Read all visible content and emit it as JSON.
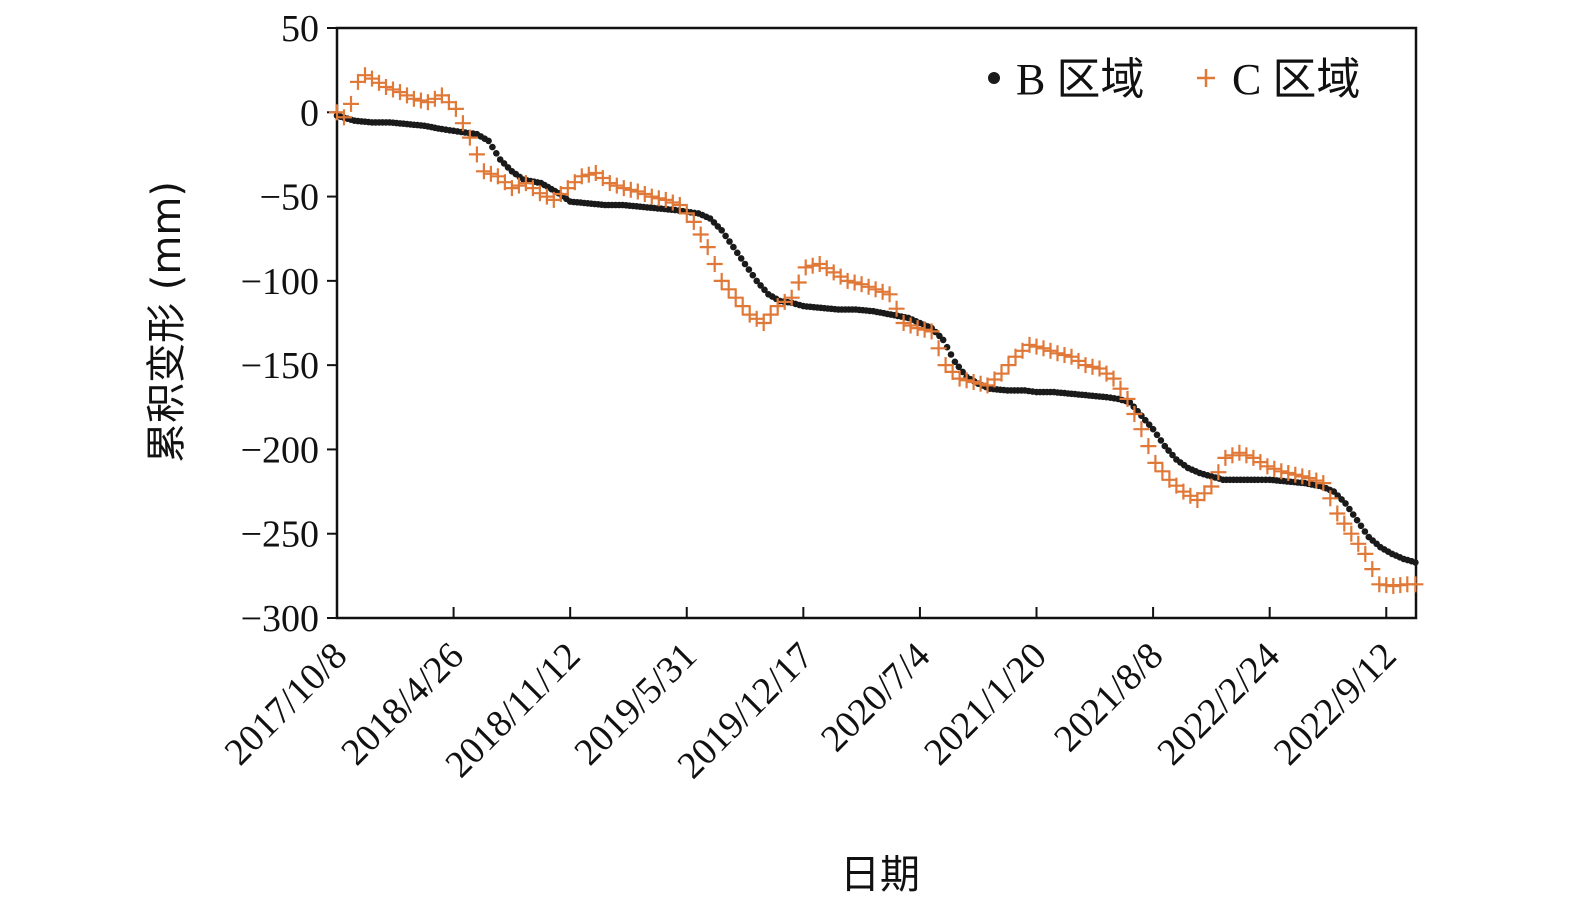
{
  "chart_data": {
    "type": "scatter",
    "title": "",
    "xlabel": "日期",
    "ylabel": "累积变形 (mm)",
    "ylim": [
      -300,
      50
    ],
    "yticks": [
      50,
      0,
      -50,
      -100,
      -150,
      -200,
      -250,
      -300
    ],
    "xlim": [
      "2017-10-08",
      "2022-11-02"
    ],
    "xtick_labels": [
      "2017/10/8",
      "2018/4/26",
      "2018/11/12",
      "2019/5/31",
      "2019/12/17",
      "2020/7/4",
      "2021/1/20",
      "2021/8/8",
      "2022/2/24",
      "2022/9/12"
    ],
    "xtick_dates": [
      "2017-10-08",
      "2018-04-26",
      "2018-11-12",
      "2019-05-31",
      "2019-12-17",
      "2020-07-04",
      "2021-01-20",
      "2021-08-08",
      "2022-02-24",
      "2022-09-12"
    ],
    "grid": false,
    "legend_position": "top-right",
    "colors": {
      "B": "#1a1a1a",
      "C": "#e07838",
      "axis": "#111111"
    },
    "series": [
      {
        "name": "B 区域",
        "marker": "dot",
        "color": "#1a1a1a",
        "x": [
          "2017-10-08",
          "2017-11-07",
          "2017-12-07",
          "2018-01-06",
          "2018-02-05",
          "2018-03-07",
          "2018-04-06",
          "2018-04-26",
          "2018-05-16",
          "2018-06-05",
          "2018-06-25",
          "2018-07-15",
          "2018-08-04",
          "2018-08-24",
          "2018-09-23",
          "2018-10-23",
          "2018-11-12",
          "2018-12-12",
          "2019-01-11",
          "2019-02-10",
          "2019-03-12",
          "2019-04-11",
          "2019-05-11",
          "2019-05-31",
          "2019-06-20",
          "2019-07-10",
          "2019-07-30",
          "2019-08-19",
          "2019-09-08",
          "2019-09-28",
          "2019-10-18",
          "2019-11-07",
          "2019-11-27",
          "2019-12-17",
          "2020-01-16",
          "2020-02-15",
          "2020-03-16",
          "2020-04-15",
          "2020-05-15",
          "2020-06-14",
          "2020-07-04",
          "2020-07-24",
          "2020-08-13",
          "2020-09-02",
          "2020-09-22",
          "2020-10-12",
          "2020-11-01",
          "2020-12-01",
          "2020-12-31",
          "2021-01-20",
          "2021-02-19",
          "2021-03-21",
          "2021-04-20",
          "2021-05-20",
          "2021-06-09",
          "2021-06-29",
          "2021-07-19",
          "2021-08-08",
          "2021-08-28",
          "2021-09-17",
          "2021-10-07",
          "2021-10-27",
          "2021-11-16",
          "2021-12-06",
          "2022-01-05",
          "2022-02-04",
          "2022-02-24",
          "2022-03-26",
          "2022-04-25",
          "2022-05-25",
          "2022-06-14",
          "2022-07-04",
          "2022-07-24",
          "2022-08-13",
          "2022-09-02",
          "2022-09-22",
          "2022-10-12",
          "2022-11-01"
        ],
        "y": [
          -2,
          -5,
          -6,
          -6,
          -7,
          -8,
          -10,
          -11,
          -12,
          -13,
          -17,
          -28,
          -35,
          -40,
          -42,
          -48,
          -53,
          -54,
          -55,
          -55,
          -56,
          -57,
          -58,
          -59,
          -60,
          -63,
          -70,
          -80,
          -90,
          -100,
          -108,
          -112,
          -113,
          -115,
          -116,
          -117,
          -117,
          -118,
          -120,
          -122,
          -125,
          -128,
          -135,
          -148,
          -157,
          -161,
          -164,
          -165,
          -165,
          -166,
          -166,
          -167,
          -168,
          -169,
          -170,
          -172,
          -180,
          -188,
          -198,
          -206,
          -211,
          -214,
          -216,
          -218,
          -218,
          -218,
          -218,
          -219,
          -220,
          -222,
          -225,
          -232,
          -242,
          -252,
          -258,
          -262,
          -265,
          -267
        ]
      },
      {
        "name": "C 区域",
        "marker": "plus",
        "color": "#e07838",
        "x": [
          "2017-10-08",
          "2017-10-20",
          "2017-11-01",
          "2017-11-13",
          "2017-11-25",
          "2017-12-07",
          "2017-12-31",
          "2018-01-24",
          "2018-02-17",
          "2018-03-13",
          "2018-04-06",
          "2018-04-30",
          "2018-05-24",
          "2018-06-17",
          "2018-07-11",
          "2018-08-04",
          "2018-08-28",
          "2018-09-21",
          "2018-10-15",
          "2018-11-08",
          "2018-12-02",
          "2018-12-26",
          "2019-01-19",
          "2019-02-12",
          "2019-03-08",
          "2019-04-01",
          "2019-04-25",
          "2019-05-19",
          "2019-06-12",
          "2019-07-06",
          "2019-07-30",
          "2019-08-23",
          "2019-09-16",
          "2019-10-10",
          "2019-11-03",
          "2019-11-27",
          "2019-12-21",
          "2020-01-14",
          "2020-02-07",
          "2020-03-02",
          "2020-03-26",
          "2020-04-19",
          "2020-05-13",
          "2020-06-06",
          "2020-06-30",
          "2020-07-24",
          "2020-08-17",
          "2020-09-10",
          "2020-10-04",
          "2020-10-28",
          "2020-11-21",
          "2020-12-15",
          "2021-01-08",
          "2021-02-01",
          "2021-02-25",
          "2021-03-21",
          "2021-04-14",
          "2021-05-08",
          "2021-06-01",
          "2021-06-25",
          "2021-07-19",
          "2021-08-12",
          "2021-09-05",
          "2021-09-29",
          "2021-10-23",
          "2021-11-16",
          "2021-12-10",
          "2022-01-03",
          "2022-01-27",
          "2022-02-20",
          "2022-03-16",
          "2022-04-09",
          "2022-05-03",
          "2022-05-27",
          "2022-06-20",
          "2022-07-14",
          "2022-08-07",
          "2022-08-31",
          "2022-09-24",
          "2022-10-18",
          "2022-11-01"
        ],
        "y": [
          0,
          -3,
          5,
          18,
          22,
          20,
          15,
          12,
          8,
          6,
          10,
          2,
          -15,
          -35,
          -38,
          -45,
          -42,
          -48,
          -52,
          -45,
          -38,
          -36,
          -42,
          -45,
          -47,
          -50,
          -52,
          -55,
          -65,
          -80,
          -100,
          -110,
          -120,
          -125,
          -115,
          -110,
          -92,
          -90,
          -95,
          -100,
          -102,
          -105,
          -108,
          -125,
          -128,
          -130,
          -150,
          -158,
          -160,
          -162,
          -155,
          -145,
          -138,
          -140,
          -143,
          -145,
          -150,
          -152,
          -158,
          -170,
          -188,
          -208,
          -218,
          -225,
          -230,
          -222,
          -205,
          -202,
          -205,
          -210,
          -213,
          -215,
          -217,
          -220,
          -238,
          -250,
          -262,
          -280,
          -281,
          -280,
          -280
        ]
      }
    ]
  }
}
